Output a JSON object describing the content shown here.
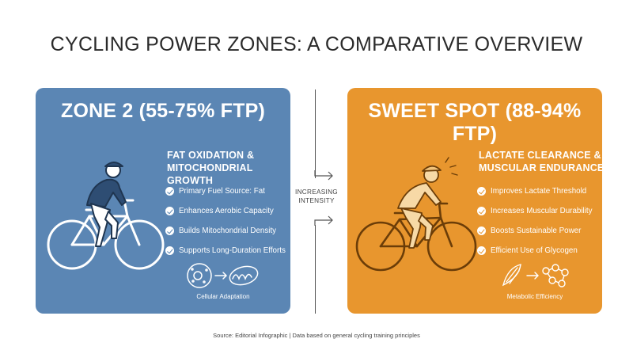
{
  "title": "CYCLING POWER ZONES: A COMPARATIVE OVERVIEW",
  "middle": {
    "line1": "INCREASING",
    "line2": "INTENSITY"
  },
  "zone2": {
    "heading": "ZONE 2 (55-75% FTP)",
    "subtitle_line1": "FAT OXIDATION &",
    "subtitle_line2": "MITOCHONDRIAL GROWTH",
    "features": [
      "Primary Fuel Source: Fat",
      "Enhances Aerobic Capacity",
      "Builds Mitochondrial Density",
      "Supports Long-Duration Efforts"
    ],
    "icon_label": "Cellular Adaptation",
    "color": "#5b86b4"
  },
  "sweet_spot": {
    "heading": "SWEET SPOT (88-94% FTP)",
    "subtitle_line1": "LACTATE CLEARANCE &",
    "subtitle_line2": "MUSCULAR ENDURANCE",
    "features": [
      "Improves Lactate Threshold",
      "Increases Muscular Durability",
      "Boosts Sustainable Power",
      "Efficient Use of Glycogen"
    ],
    "icon_label": "Metabolic Efficiency",
    "color": "#e8962e"
  },
  "source": "Source: Editorial Infographic | Data based on general cycling training principles"
}
